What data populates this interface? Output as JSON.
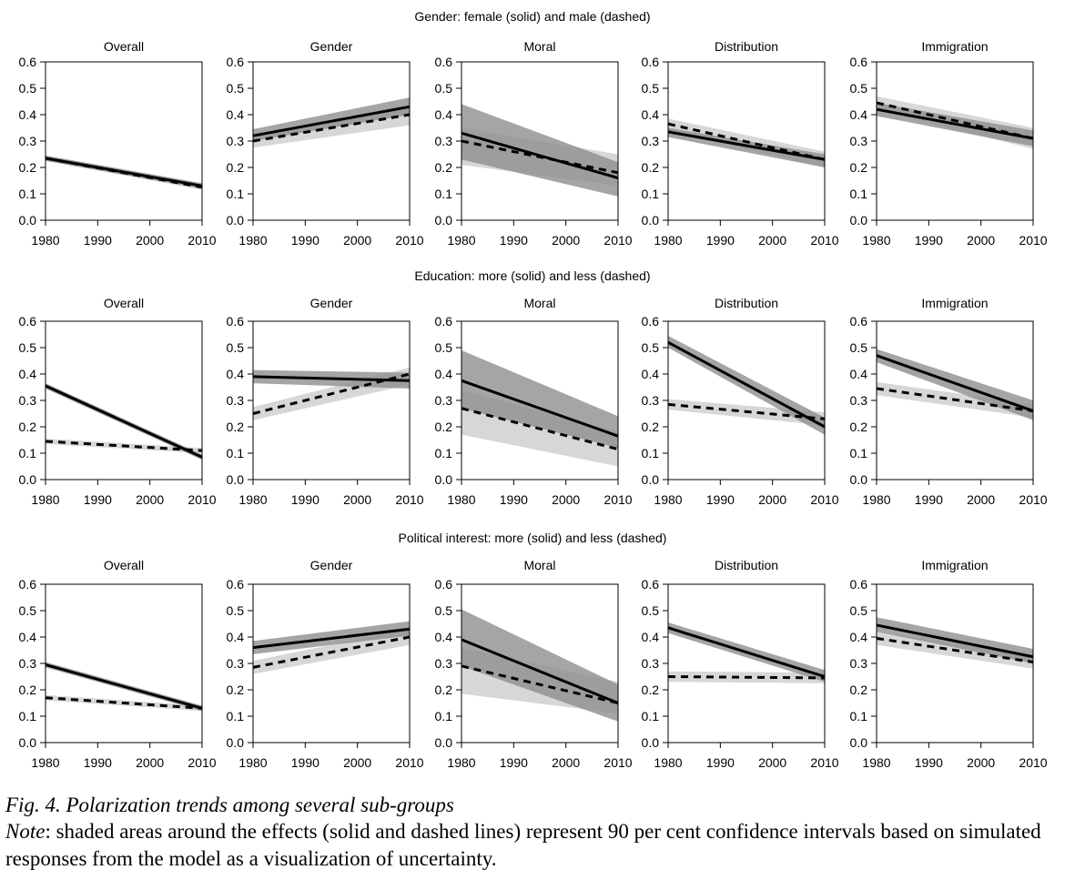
{
  "chart_data": [
    {
      "type": "line",
      "title": "Gender: female (solid) and male (dashed)",
      "panels": [
        {
          "title": "Overall",
          "series": [
            {
              "style": "solid",
              "x": [
                1980,
                2010
              ],
              "y": [
                0.235,
                0.13
              ],
              "lower": [
                0.225,
                0.12
              ],
              "upper": [
                0.245,
                0.14
              ]
            },
            {
              "style": "dashed",
              "x": [
                1980,
                2010
              ],
              "y": [
                0.235,
                0.125
              ],
              "lower": [
                0.225,
                0.115
              ],
              "upper": [
                0.245,
                0.14
              ]
            }
          ]
        },
        {
          "title": "Gender",
          "series": [
            {
              "style": "solid",
              "x": [
                1980,
                2010
              ],
              "y": [
                0.32,
                0.43
              ],
              "lower": [
                0.3,
                0.4
              ],
              "upper": [
                0.345,
                0.465
              ]
            },
            {
              "style": "dashed",
              "x": [
                1980,
                2010
              ],
              "y": [
                0.3,
                0.4
              ],
              "lower": [
                0.275,
                0.36
              ],
              "upper": [
                0.32,
                0.44
              ]
            }
          ]
        },
        {
          "title": "Moral",
          "series": [
            {
              "style": "solid",
              "x": [
                1980,
                2010
              ],
              "y": [
                0.33,
                0.16
              ],
              "lower": [
                0.23,
                0.09
              ],
              "upper": [
                0.44,
                0.22
              ]
            },
            {
              "style": "dashed",
              "x": [
                1980,
                2010
              ],
              "y": [
                0.3,
                0.18
              ],
              "lower": [
                0.21,
                0.13
              ],
              "upper": [
                0.35,
                0.25
              ]
            }
          ]
        },
        {
          "title": "Distribution",
          "series": [
            {
              "style": "solid",
              "x": [
                1980,
                2010
              ],
              "y": [
                0.335,
                0.23
              ],
              "lower": [
                0.315,
                0.2
              ],
              "upper": [
                0.35,
                0.25
              ]
            },
            {
              "style": "dashed",
              "x": [
                1980,
                2010
              ],
              "y": [
                0.365,
                0.23
              ],
              "lower": [
                0.34,
                0.2
              ],
              "upper": [
                0.385,
                0.26
              ]
            }
          ]
        },
        {
          "title": "Immigration",
          "series": [
            {
              "style": "solid",
              "x": [
                1980,
                2010
              ],
              "y": [
                0.42,
                0.31
              ],
              "lower": [
                0.395,
                0.28
              ],
              "upper": [
                0.445,
                0.34
              ]
            },
            {
              "style": "dashed",
              "x": [
                1980,
                2010
              ],
              "y": [
                0.445,
                0.31
              ],
              "lower": [
                0.42,
                0.27
              ],
              "upper": [
                0.47,
                0.35
              ]
            }
          ]
        }
      ],
      "x_ticks": [
        1980,
        1990,
        2000,
        2010
      ],
      "y_ticks": [
        0.0,
        0.1,
        0.2,
        0.3,
        0.4,
        0.5,
        0.6
      ],
      "xlim": [
        1980,
        2010
      ],
      "ylim": [
        0,
        0.6
      ],
      "grid": false
    },
    {
      "type": "line",
      "title": "Education: more (solid) and less (dashed)",
      "panels": [
        {
          "title": "Overall",
          "series": [
            {
              "style": "solid",
              "x": [
                1980,
                2010
              ],
              "y": [
                0.355,
                0.085
              ],
              "lower": [
                0.345,
                0.075
              ],
              "upper": [
                0.365,
                0.095
              ]
            },
            {
              "style": "dashed",
              "x": [
                1980,
                2010
              ],
              "y": [
                0.145,
                0.11
              ],
              "lower": [
                0.135,
                0.1
              ],
              "upper": [
                0.155,
                0.12
              ]
            }
          ]
        },
        {
          "title": "Gender",
          "series": [
            {
              "style": "solid",
              "x": [
                1980,
                2010
              ],
              "y": [
                0.39,
                0.375
              ],
              "lower": [
                0.365,
                0.345
              ],
              "upper": [
                0.415,
                0.405
              ]
            },
            {
              "style": "dashed",
              "x": [
                1980,
                2010
              ],
              "y": [
                0.25,
                0.4
              ],
              "lower": [
                0.225,
                0.36
              ],
              "upper": [
                0.275,
                0.425
              ]
            }
          ]
        },
        {
          "title": "Moral",
          "series": [
            {
              "style": "solid",
              "x": [
                1980,
                2010
              ],
              "y": [
                0.375,
                0.165
              ],
              "lower": [
                0.27,
                0.12
              ],
              "upper": [
                0.49,
                0.24
              ]
            },
            {
              "style": "dashed",
              "x": [
                1980,
                2010
              ],
              "y": [
                0.27,
                0.115
              ],
              "lower": [
                0.17,
                0.05
              ],
              "upper": [
                0.34,
                0.18
              ]
            }
          ]
        },
        {
          "title": "Distribution",
          "series": [
            {
              "style": "solid",
              "x": [
                1980,
                2010
              ],
              "y": [
                0.52,
                0.2
              ],
              "lower": [
                0.5,
                0.17
              ],
              "upper": [
                0.545,
                0.235
              ]
            },
            {
              "style": "dashed",
              "x": [
                1980,
                2010
              ],
              "y": [
                0.285,
                0.23
              ],
              "lower": [
                0.265,
                0.205
              ],
              "upper": [
                0.305,
                0.255
              ]
            }
          ]
        },
        {
          "title": "Immigration",
          "series": [
            {
              "style": "solid",
              "x": [
                1980,
                2010
              ],
              "y": [
                0.47,
                0.26
              ],
              "lower": [
                0.445,
                0.225
              ],
              "upper": [
                0.495,
                0.3
              ]
            },
            {
              "style": "dashed",
              "x": [
                1980,
                2010
              ],
              "y": [
                0.345,
                0.26
              ],
              "lower": [
                0.32,
                0.235
              ],
              "upper": [
                0.37,
                0.285
              ]
            }
          ]
        }
      ],
      "x_ticks": [
        1980,
        1990,
        2000,
        2010
      ],
      "y_ticks": [
        0.0,
        0.1,
        0.2,
        0.3,
        0.4,
        0.5,
        0.6
      ],
      "xlim": [
        1980,
        2010
      ],
      "ylim": [
        0,
        0.6
      ],
      "grid": false
    },
    {
      "type": "line",
      "title": "Political interest: more (solid) and less (dashed)",
      "panels": [
        {
          "title": "Overall",
          "series": [
            {
              "style": "solid",
              "x": [
                1980,
                2010
              ],
              "y": [
                0.295,
                0.13
              ],
              "lower": [
                0.285,
                0.12
              ],
              "upper": [
                0.305,
                0.14
              ]
            },
            {
              "style": "dashed",
              "x": [
                1980,
                2010
              ],
              "y": [
                0.17,
                0.13
              ],
              "lower": [
                0.16,
                0.12
              ],
              "upper": [
                0.18,
                0.14
              ]
            }
          ]
        },
        {
          "title": "Gender",
          "series": [
            {
              "style": "solid",
              "x": [
                1980,
                2010
              ],
              "y": [
                0.36,
                0.43
              ],
              "lower": [
                0.335,
                0.405
              ],
              "upper": [
                0.385,
                0.46
              ]
            },
            {
              "style": "dashed",
              "x": [
                1980,
                2010
              ],
              "y": [
                0.285,
                0.4
              ],
              "lower": [
                0.26,
                0.37
              ],
              "upper": [
                0.31,
                0.43
              ]
            }
          ]
        },
        {
          "title": "Moral",
          "series": [
            {
              "style": "solid",
              "x": [
                1980,
                2010
              ],
              "y": [
                0.39,
                0.15
              ],
              "lower": [
                0.29,
                0.08
              ],
              "upper": [
                0.505,
                0.22
              ]
            },
            {
              "style": "dashed",
              "x": [
                1980,
                2010
              ],
              "y": [
                0.29,
                0.15
              ],
              "lower": [
                0.185,
                0.11
              ],
              "upper": [
                0.36,
                0.23
              ]
            }
          ]
        },
        {
          "title": "Distribution",
          "series": [
            {
              "style": "solid",
              "x": [
                1980,
                2010
              ],
              "y": [
                0.435,
                0.25
              ],
              "lower": [
                0.415,
                0.23
              ],
              "upper": [
                0.455,
                0.275
              ]
            },
            {
              "style": "dashed",
              "x": [
                1980,
                2010
              ],
              "y": [
                0.25,
                0.245
              ],
              "lower": [
                0.23,
                0.225
              ],
              "upper": [
                0.27,
                0.265
              ]
            }
          ]
        },
        {
          "title": "Immigration",
          "series": [
            {
              "style": "solid",
              "x": [
                1980,
                2010
              ],
              "y": [
                0.445,
                0.325
              ],
              "lower": [
                0.42,
                0.3
              ],
              "upper": [
                0.475,
                0.355
              ]
            },
            {
              "style": "dashed",
              "x": [
                1980,
                2010
              ],
              "y": [
                0.395,
                0.305
              ],
              "lower": [
                0.37,
                0.28
              ],
              "upper": [
                0.42,
                0.33
              ]
            }
          ]
        }
      ],
      "x_ticks": [
        1980,
        1990,
        2000,
        2010
      ],
      "y_ticks": [
        0.0,
        0.1,
        0.2,
        0.3,
        0.4,
        0.5,
        0.6
      ],
      "xlim": [
        1980,
        2010
      ],
      "ylim": [
        0,
        0.6
      ],
      "grid": false
    }
  ],
  "caption": {
    "title": "Fig. 4.  Polarization trends among several sub-groups",
    "note_label": "Note",
    "note_text": ": shaded areas around the effects (solid and dashed lines) represent 90 per cent confidence intervals based on simulated responses from the model as a visualization of uncertainty."
  },
  "colors": {
    "line": "#000000",
    "band_solid": "#8f8f8f",
    "band_dashed": "#c9c9c9"
  }
}
